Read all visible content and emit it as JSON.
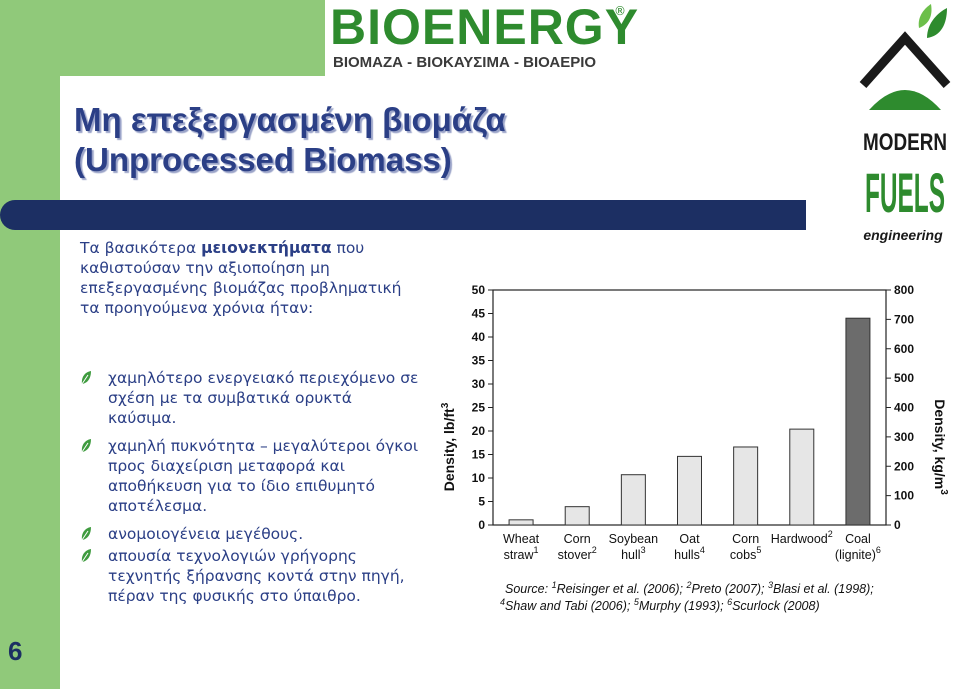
{
  "header": {
    "logo_text": "BIOENERGY",
    "logo_reg": "®",
    "logo_subtitle": "ΒΙΟΜΑΖΑ - ΒΙΟΚΑΥΣΙΜΑ - ΒΙΟΑΕΡΙΟ",
    "side_logo_line1": "MODERN",
    "side_logo_line2": "FUELS",
    "side_logo_line3": "engineering"
  },
  "slide": {
    "number": "6",
    "title_line1": "Μη επεξεργασμένη βιομάζα",
    "title_line2": "(Unprocessed Biomass)",
    "intro_pre": "Τα βασικότερα ",
    "intro_strong": "μειονεκτήματα",
    "intro_post": " που καθιστούσαν την αξιοποίηση μη επεξεργασμένης βιομάζας προβληματική τα προηγούμενα χρόνια ήταν:",
    "bullets": [
      "χαμηλότερο ενεργειακό περιεχόμενο σε σχέση με τα συμβατικά ορυκτά καύσιμα.",
      "χαμηλή πυκνότητα – μεγαλύτεροι όγκοι προς διαχείριση μεταφορά και αποθήκευση για το ίδιο επιθυμητό αποτέλεσμα.",
      "ανομοιογένεια μεγέθους.",
      "απουσία τεχνολογιών γρήγορης τεχνητής ξήρανσης κοντά στην πηγή, πέραν της φυσικής στο ύπαιθρο."
    ],
    "colors": {
      "title": "#2b3f86",
      "band": "#1c2f63",
      "green": "#90c97a",
      "logo_green": "#2e8b2e"
    }
  },
  "chart_data": {
    "type": "bar",
    "categories": [
      {
        "l1": "Wheat",
        "l2": "straw",
        "sup": "1"
      },
      {
        "l1": "Corn",
        "l2": "stover",
        "sup": "2"
      },
      {
        "l1": "Soybean",
        "l2": "hull",
        "sup": "3"
      },
      {
        "l1": "Oat",
        "l2": "hulls",
        "sup": "4"
      },
      {
        "l1": "Corn",
        "l2": "cobs",
        "sup": "5"
      },
      {
        "l1": "Hardwood",
        "l2": "",
        "sup": "2"
      },
      {
        "l1": "Coal",
        "l2": "(lignite)",
        "sup": "6"
      }
    ],
    "values": [
      1.1,
      3.9,
      10.7,
      14.6,
      16.6,
      20.4,
      44.0
    ],
    "bar_colors": [
      "#e6e6e6",
      "#e6e6e6",
      "#e6e6e6",
      "#e6e6e6",
      "#e6e6e6",
      "#e6e6e6",
      "#6c6c6c"
    ],
    "ylabel_left": "Density, lb/ft",
    "ylabel_left_sup": "3",
    "ylabel_right": "Density, kg/m",
    "ylabel_right_sup": "3",
    "ylim": [
      0,
      50
    ],
    "yticks_left": [
      "0",
      "5",
      "10",
      "15",
      "20",
      "25",
      "30",
      "35",
      "40",
      "45",
      "50"
    ],
    "ylim_right": [
      0,
      800
    ],
    "yticks_right": [
      "0",
      "100",
      "200",
      "300",
      "400",
      "500",
      "600",
      "700",
      "800"
    ],
    "source_line1": [
      {
        "t": "Source: "
      },
      {
        "s": "1"
      },
      {
        "t": "Reisinger et al. (2006); "
      },
      {
        "s": "2"
      },
      {
        "t": "Preto (2007); "
      },
      {
        "s": "3"
      },
      {
        "t": "Blasi et al. (1998);"
      }
    ],
    "source_line2": [
      {
        "s": "4"
      },
      {
        "t": "Shaw and Tabi (2006); "
      },
      {
        "s": "5"
      },
      {
        "t": "Murphy (1993); "
      },
      {
        "s": "6"
      },
      {
        "t": "Scurlock (2008)"
      }
    ]
  }
}
